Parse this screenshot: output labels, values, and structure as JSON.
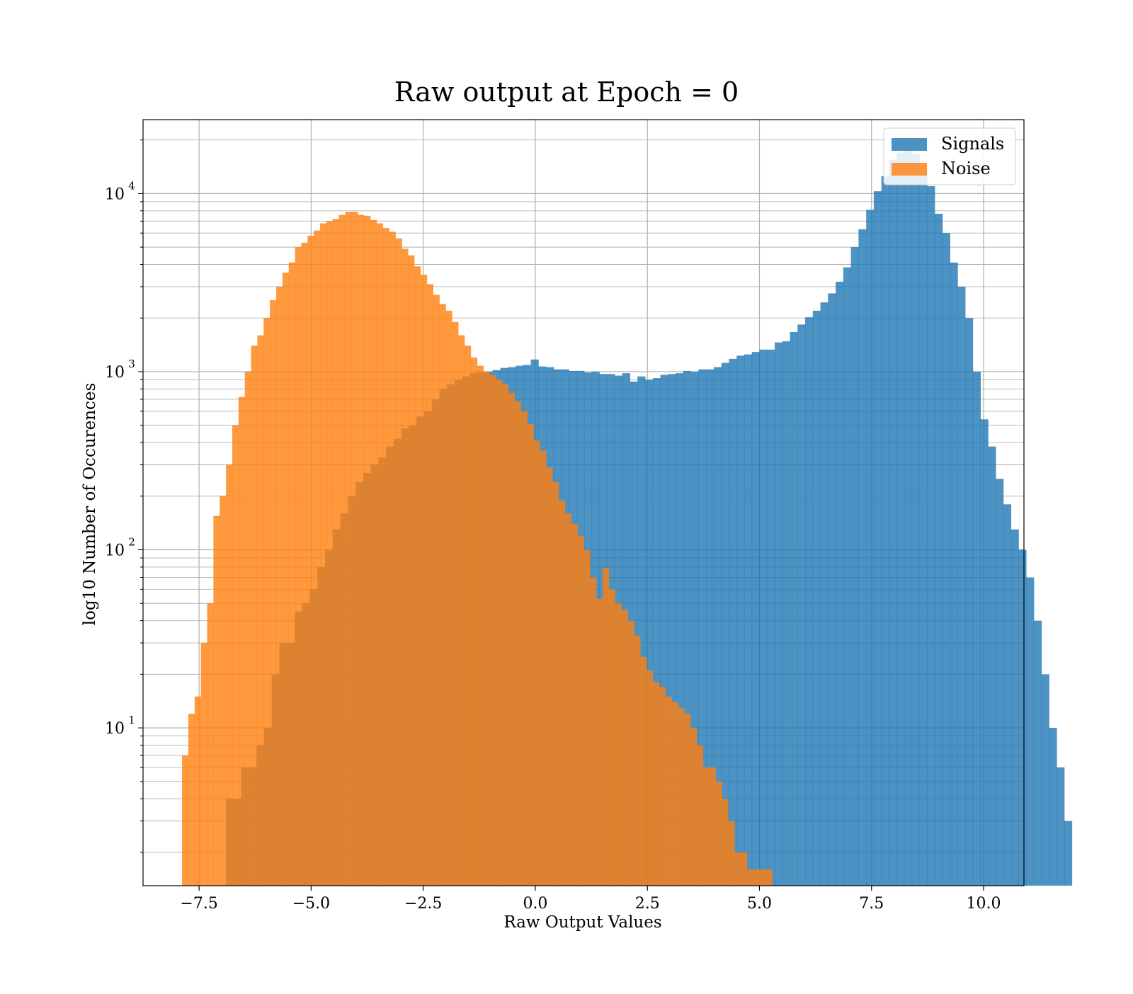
{
  "chart_data": {
    "type": "histogram",
    "title": "Raw output at Epoch = 0",
    "xlabel": "Raw Output Values",
    "ylabel": "log10 Number of Occurences",
    "y_scale": "log",
    "xlim": [
      -8.75,
      10.9
    ],
    "ylim": [
      1.3,
      26000
    ],
    "x_ticks": [
      -7.5,
      -5.0,
      -2.5,
      0.0,
      2.5,
      5.0,
      7.5,
      10.0
    ],
    "x_tick_labels": [
      "−7.5",
      "−5.0",
      "−2.5",
      "0.0",
      "2.5",
      "5.0",
      "7.5",
      "10.0"
    ],
    "y_ticks": [
      {
        "base": "10",
        "exp": "1",
        "value": 10
      },
      {
        "base": "10",
        "exp": "2",
        "value": 100
      },
      {
        "base": "10",
        "exp": "3",
        "value": 1000
      },
      {
        "base": "10",
        "exp": "4",
        "value": 10000
      }
    ],
    "grid": true,
    "legend_position": "top-right",
    "series": [
      {
        "name": "Signals",
        "color": "#1f77b4",
        "opacity": 0.8,
        "bin_start": -6.9,
        "bin_width": 0.17,
        "counts": [
          4,
          4,
          6,
          6,
          8,
          10,
          20,
          30,
          30,
          45,
          50,
          60,
          80,
          100,
          130,
          160,
          200,
          240,
          270,
          300,
          330,
          380,
          420,
          480,
          500,
          560,
          600,
          700,
          800,
          850,
          900,
          940,
          980,
          1000,
          1000,
          1020,
          1050,
          1060,
          1080,
          1090,
          1170,
          1070,
          1060,
          1030,
          1030,
          1010,
          1010,
          990,
          1000,
          970,
          970,
          950,
          980,
          880,
          940,
          900,
          920,
          960,
          970,
          980,
          1010,
          1000,
          1030,
          1030,
          1060,
          1120,
          1180,
          1230,
          1250,
          1290,
          1330,
          1330,
          1460,
          1480,
          1670,
          1840,
          2020,
          2200,
          2450,
          2750,
          3200,
          3850,
          5000,
          6300,
          8100,
          10300,
          12500,
          15400,
          17000,
          17500,
          16600,
          14000,
          11000,
          7700,
          6000,
          4100,
          3000,
          2000,
          1000,
          540,
          380,
          250,
          180,
          130,
          100,
          70,
          40,
          20,
          10,
          6,
          3
        ]
      },
      {
        "name": "Noise",
        "color": "#ff7f0e",
        "opacity": 0.8,
        "bin_start": -7.88,
        "bin_width": 0.14,
        "counts": [
          7,
          12,
          15,
          30,
          50,
          155,
          201,
          300,
          500,
          720,
          1000,
          1400,
          1600,
          2000,
          2520,
          3000,
          3600,
          4100,
          5000,
          5300,
          5800,
          6200,
          6800,
          7000,
          7200,
          7600,
          7900,
          7900,
          7600,
          7500,
          7100,
          6800,
          6400,
          6100,
          5600,
          4900,
          4500,
          3900,
          3500,
          3100,
          2700,
          2400,
          2200,
          1900,
          1600,
          1400,
          1200,
          1080,
          1000,
          960,
          900,
          850,
          760,
          680,
          600,
          510,
          410,
          360,
          290,
          240,
          190,
          160,
          140,
          120,
          100,
          70,
          53,
          79,
          60,
          50,
          46,
          40,
          33,
          25,
          21,
          18,
          17,
          15,
          14,
          13,
          12,
          10,
          8,
          6,
          6,
          5,
          4,
          3,
          2,
          2,
          1.6,
          1.6,
          1.6,
          1.6
        ]
      }
    ]
  }
}
